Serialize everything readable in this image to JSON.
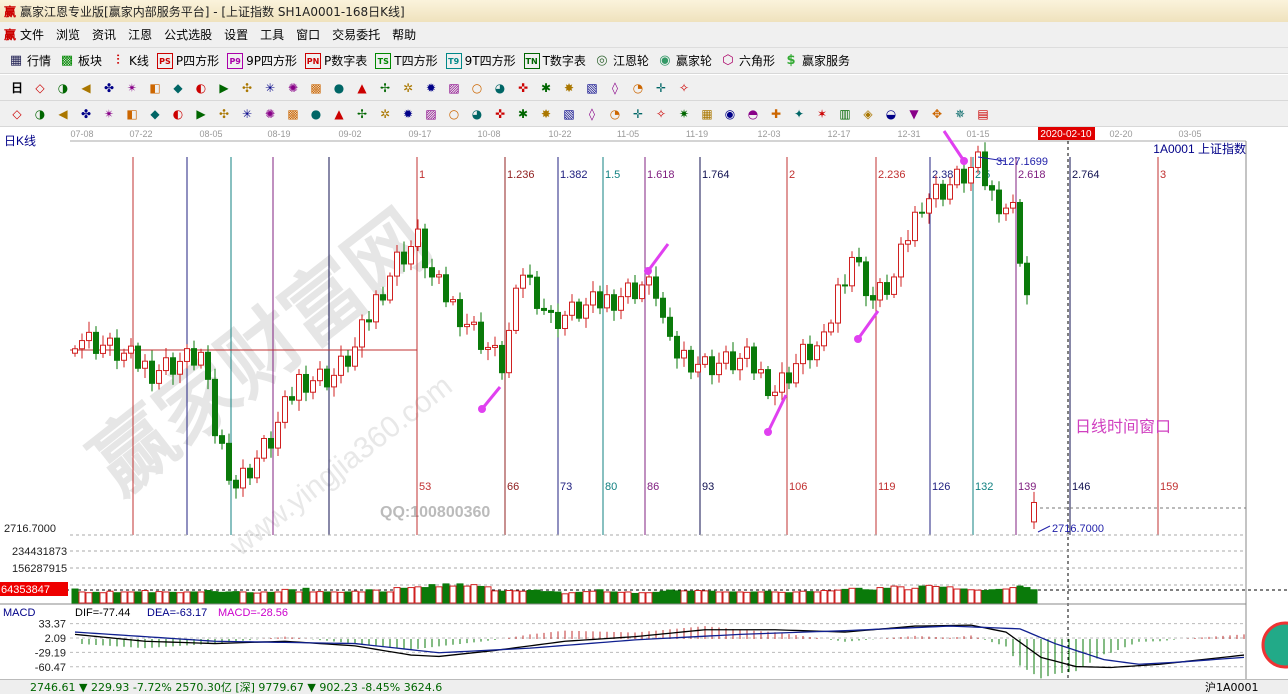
{
  "window": {
    "title": "赢家江恩专业版[赢家内部服务平台] - [上证指数  SH1A0001-168日K线]",
    "logo": "赢"
  },
  "menu": [
    "文件",
    "浏览",
    "资讯",
    "江恩",
    "公式选股",
    "设置",
    "工具",
    "窗口",
    "交易委托",
    "帮助"
  ],
  "toolbar1": [
    {
      "icon": "quote-table-icon",
      "glyph": "▦",
      "color": "#225",
      "label": "行情"
    },
    {
      "icon": "sector-icon",
      "glyph": "▩",
      "color": "#080",
      "label": "板块"
    },
    {
      "icon": "kline-icon",
      "glyph": "⫶",
      "color": "#c00",
      "label": "K线"
    },
    {
      "icon": "ps-icon",
      "glyph": "PS",
      "color": "#c00",
      "label": "P四方形"
    },
    {
      "icon": "p9-icon",
      "glyph": "P9",
      "color": "#a0a",
      "label": "9P四方形"
    },
    {
      "icon": "pn-icon",
      "glyph": "PN",
      "color": "#c00",
      "label": "P数字表"
    },
    {
      "icon": "ts-icon",
      "glyph": "TS",
      "color": "#080",
      "label": "T四方形"
    },
    {
      "icon": "t9-icon",
      "glyph": "T9",
      "color": "#088",
      "label": "9T四方形"
    },
    {
      "icon": "tn-icon",
      "glyph": "TN",
      "color": "#060",
      "label": "T数字表"
    },
    {
      "icon": "gann-wheel-icon",
      "glyph": "◎",
      "color": "#363",
      "label": "江恩轮"
    },
    {
      "icon": "yingjia-wheel-icon",
      "glyph": "◉",
      "color": "#396",
      "label": "赢家轮"
    },
    {
      "icon": "hexagon-icon",
      "glyph": "⬡",
      "color": "#a06",
      "label": "六角形"
    },
    {
      "icon": "dollar-icon",
      "glyph": "$",
      "color": "#3a3",
      "label": "赢家服务"
    }
  ],
  "toolbar2": [
    "period-day-icon",
    "window-icon",
    "notes-icon",
    "chart3-icon",
    "chart9-icon",
    "candle-type-icon",
    "calc-icon",
    "flag-icon",
    "first-icon",
    "last-icon",
    "left-icon",
    "right-icon",
    "diamond-left-icon",
    "diamond-right-icon",
    "diamond-h-icon",
    "diamond-x-icon",
    "diamond-star-icon",
    "diamond-v-icon",
    "hand-icon",
    "crosshair-icon",
    "trend-icon",
    "node-icon",
    "cycle-icon",
    "calendar-icon",
    "calculator-icon",
    "report-icon",
    "save-icon",
    "network-icon",
    "print-icon"
  ],
  "toolbar2_period": "日",
  "toolbar3": [
    "pen-icon",
    "grid-icon",
    "gold-grid-icon",
    "gold-grid2-icon",
    "f-grid-icon",
    "spiral-icon",
    "pen-ruler-icon",
    "circle-grid-icon",
    "grid2-icon",
    "n2-icon",
    "angle-icon",
    "target-icon",
    "star-icon",
    "square-icon",
    "lines-icon",
    "shen-icon",
    "ying-icon",
    "box-grid-icon",
    "arrow-h-icon",
    "rect-icon",
    "fan-icon",
    "box-fan-icon",
    "box-fan2-icon",
    "angle2-icon",
    "v-icon",
    "grid3-icon",
    "grid4-icon",
    "slash-icon",
    "table-icon",
    "percent-fan-icon",
    "percent-icon",
    "percent-lines-icon",
    "gold-circle-icon",
    "gold-lines-icon",
    "pencil-bar-icon",
    "wave-icon",
    "gold-icon",
    "j-fan-icon",
    "f-fan-icon",
    "gold-fan-icon",
    "jian-fan-icon",
    "ying-fan-icon",
    "si-fan-icon"
  ],
  "chart": {
    "period_label": "日K线",
    "symbol": "1A0001  上证指数",
    "dates": [
      "07-08",
      "07-22",
      "08-05",
      "08-19",
      "09-02",
      "09-17",
      "10-08",
      "10-22",
      "11-05",
      "11-19",
      "12-03",
      "12-17",
      "12-31",
      "01-15",
      "2020-02-10",
      "02-20",
      "03-05"
    ],
    "high_label": "3127.1699",
    "low_label": "2716.7000",
    "low_axis": "2716.7000",
    "annotation": "日线时间窗口",
    "watermark": "赢家财富网",
    "watermark_url": "www.yingjia360.com",
    "qq": "QQ:100800360",
    "fib_lines": [
      {
        "top": "1",
        "bar": "53",
        "color": "#c03030"
      },
      {
        "top": "1.236",
        "bar": "66",
        "color": "#902020"
      },
      {
        "top": "1.382",
        "bar": "73",
        "color": "#202080"
      },
      {
        "top": "1.5",
        "bar": "80",
        "color": "#108080"
      },
      {
        "top": "1.618",
        "bar": "86",
        "color": "#802080"
      },
      {
        "top": "1.764",
        "bar": "93",
        "color": "#101050"
      },
      {
        "top": "2",
        "bar": "106",
        "color": "#c03030"
      },
      {
        "top": "2.236",
        "bar": "119",
        "color": "#c03030"
      },
      {
        "top": "2.382",
        "bar": "126",
        "color": "#202080"
      },
      {
        "top": "2.5",
        "bar": "132",
        "color": "#108080"
      },
      {
        "top": "2.618",
        "bar": "139",
        "color": "#802080"
      },
      {
        "top": "2.764",
        "bar": "146",
        "color": "#101050"
      },
      {
        "top": "3",
        "bar": "159",
        "color": "#c03030"
      }
    ],
    "up_color": "#d02020",
    "down_color": "#0a7a0a",
    "close_keypoints": [
      [
        0,
        2935
      ],
      [
        4,
        2924
      ],
      [
        11,
        2896
      ],
      [
        18,
        2913
      ],
      [
        20,
        2828
      ],
      [
        23,
        2766
      ],
      [
        28,
        2817
      ],
      [
        32,
        2885
      ],
      [
        37,
        2890
      ],
      [
        40,
        2919
      ],
      [
        43,
        2975
      ],
      [
        46,
        3020
      ],
      [
        49,
        3043
      ],
      [
        51,
        2998
      ],
      [
        57,
        2941
      ],
      [
        61,
        2902
      ],
      [
        64,
        3009
      ],
      [
        68,
        2952
      ],
      [
        76,
        2975
      ],
      [
        81,
        2992
      ],
      [
        83,
        2986
      ],
      [
        85,
        2919
      ],
      [
        90,
        2902
      ],
      [
        96,
        2907
      ],
      [
        100,
        2874
      ],
      [
        104,
        2913
      ],
      [
        107,
        2924
      ],
      [
        109,
        2986
      ],
      [
        111,
        3026
      ],
      [
        114,
        2975
      ],
      [
        117,
        2998
      ],
      [
        119,
        3048
      ],
      [
        121,
        3088
      ],
      [
        125,
        3105
      ],
      [
        129,
        3127
      ],
      [
        131,
        3093
      ],
      [
        134,
        3076
      ],
      [
        136,
        2981
      ],
      [
        137,
        2746.61
      ]
    ],
    "volume_axis": [
      "234431873",
      "156287915",
      "64353847"
    ],
    "volumes_millions": [
      190,
      150,
      140,
      145,
      140,
      160,
      140,
      150,
      150,
      150,
      170,
      140,
      155,
      150,
      145,
      140,
      150,
      150,
      150,
      170,
      155,
      145,
      150,
      155,
      150,
      140,
      135,
      150,
      145,
      150,
      185,
      180,
      150,
      200,
      150,
      155,
      150,
      150,
      145,
      150,
      160,
      150,
      180,
      175,
      150,
      150,
      210,
      200,
      210,
      220,
      210,
      250,
      220,
      260,
      230,
      260,
      230,
      250,
      225,
      220,
      165,
      160,
      170,
      165,
      160,
      170,
      175,
      155,
      155,
      150,
      125,
      140,
      145,
      155,
      160,
      180,
      150,
      150,
      145,
      150,
      130,
      140,
      140,
      145,
      160,
      175,
      165,
      165,
      160,
      170,
      165,
      160,
      150,
      150,
      150,
      150,
      145,
      150,
      150,
      160,
      150,
      145,
      140,
      150,
      160,
      155,
      150,
      170,
      165,
      175,
      185,
      200,
      200,
      180,
      175,
      210,
      200,
      230,
      220,
      180,
      200,
      230,
      240,
      225,
      215,
      220,
      190,
      190,
      180,
      175,
      170,
      180,
      185,
      190,
      210,
      230,
      210,
      180
    ],
    "macd": {
      "label": "MACD",
      "dif": "DIF=-77.44",
      "dea": "DEA=-63.17",
      "macd": "MACD=-28.56",
      "axis": [
        "33.37",
        "2.09",
        "-29.19",
        "-60.47"
      ],
      "dif_keypoints": [
        [
          0,
          10
        ],
        [
          10,
          -5
        ],
        [
          20,
          -10
        ],
        [
          30,
          -5
        ],
        [
          40,
          -15
        ],
        [
          48,
          -35
        ],
        [
          52,
          -38
        ],
        [
          60,
          -25
        ],
        [
          70,
          -5
        ],
        [
          80,
          5
        ],
        [
          90,
          20
        ],
        [
          100,
          20
        ],
        [
          110,
          15
        ],
        [
          120,
          28
        ],
        [
          128,
          30
        ],
        [
          133,
          15
        ],
        [
          138,
          -40
        ],
        [
          143,
          -60
        ],
        [
          148,
          -62
        ],
        [
          155,
          -55
        ],
        [
          167,
          -35
        ]
      ],
      "dea_keypoints": [
        [
          0,
          15
        ],
        [
          20,
          -5
        ],
        [
          40,
          -10
        ],
        [
          52,
          -30
        ],
        [
          65,
          -20
        ],
        [
          80,
          -2
        ],
        [
          95,
          10
        ],
        [
          110,
          18
        ],
        [
          125,
          28
        ],
        [
          135,
          22
        ],
        [
          140,
          -10
        ],
        [
          147,
          -45
        ],
        [
          152,
          -55
        ],
        [
          158,
          -50
        ],
        [
          167,
          -40
        ]
      ]
    }
  },
  "status_bar": "2746.61 ▼ 229.93  -7.72%  2570.30亿   [深] 9779.67 ▼ 902.23  -8.45%  3624.6",
  "status_right": "沪1A0001"
}
